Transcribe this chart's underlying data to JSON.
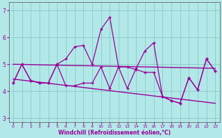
{
  "x": [
    0,
    1,
    2,
    3,
    4,
    5,
    6,
    7,
    8,
    9,
    10,
    11,
    12,
    13,
    14,
    15,
    16,
    17,
    18,
    19,
    20,
    21,
    22,
    23
  ],
  "y_line1": [
    4.3,
    5.0,
    4.4,
    4.3,
    4.3,
    5.0,
    4.2,
    4.2,
    4.3,
    4.3,
    4.9,
    4.1,
    4.9,
    4.9,
    4.8,
    4.7,
    4.7,
    3.8,
    3.65,
    3.55,
    4.5,
    4.05,
    5.2,
    4.75
  ],
  "y_line2": [
    4.3,
    5.0,
    4.4,
    4.3,
    4.3,
    5.0,
    5.2,
    5.65,
    5.7,
    5.0,
    6.3,
    6.75,
    4.9,
    4.1,
    4.85,
    5.5,
    5.8,
    3.8,
    3.65,
    3.55,
    4.5,
    4.05,
    5.2,
    4.75
  ],
  "y_trend_upper_start": 5.0,
  "y_trend_upper_end": 4.85,
  "y_trend_lower_start": 4.45,
  "y_trend_lower_end": 3.55,
  "line_color": "#990099",
  "bg_color": "#b3e8e8",
  "grid_color": "#8ecece",
  "text_color": "#990099",
  "xlabel": "Windchill (Refroidissement éolien,°C)",
  "ylim": [
    2.85,
    7.3
  ],
  "xlim": [
    -0.5,
    23.5
  ],
  "yticks": [
    3,
    4,
    5,
    6,
    7
  ],
  "xticks": [
    0,
    1,
    2,
    3,
    4,
    5,
    6,
    7,
    8,
    9,
    10,
    11,
    12,
    13,
    14,
    15,
    16,
    17,
    18,
    19,
    20,
    21,
    22,
    23
  ]
}
